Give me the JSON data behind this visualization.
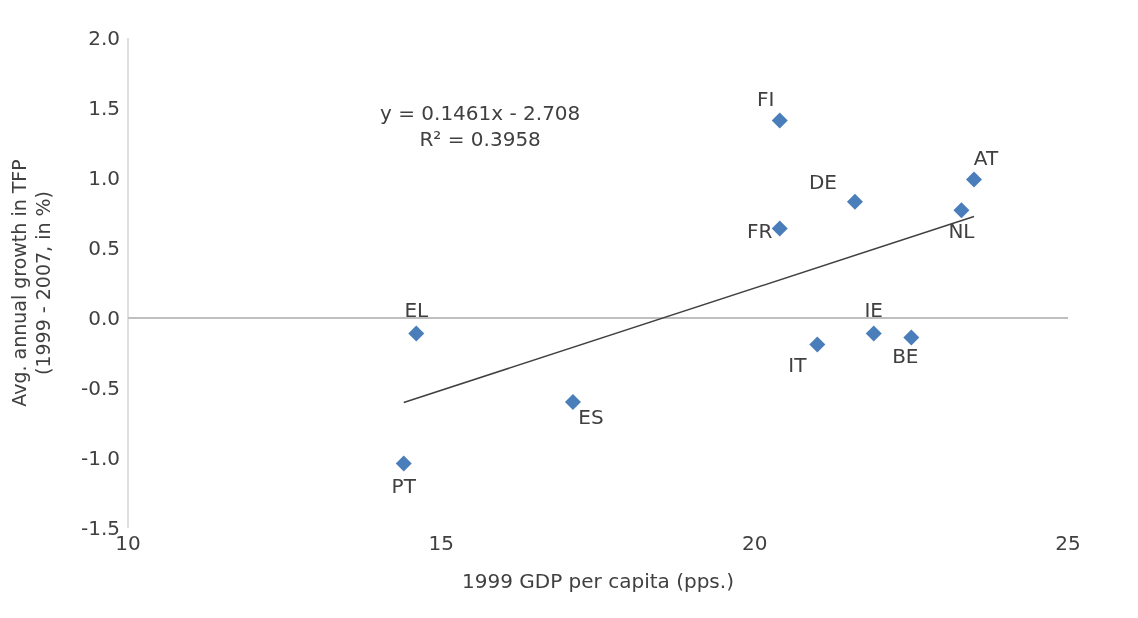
{
  "chart_data": {
    "type": "scatter",
    "xlabel": "1999 GDP per capita (pps.)",
    "ylabel": "Avg. annual growth  in TFP\n(1999 - 2007, in %)",
    "series": [
      {
        "color": "#4a7ebb",
        "marker": "diamond",
        "x": [
          20.4,
          23.5,
          21.6,
          23.3,
          20.4,
          14.6,
          21.9,
          22.5,
          21.0,
          17.1,
          14.4
        ],
        "values": [
          1.41,
          0.99,
          0.83,
          0.77,
          0.64,
          -0.11,
          -0.11,
          -0.14,
          -0.19,
          -0.6,
          -1.04
        ]
      },
      {
        "type": "line",
        "color": "#404040",
        "marker": "none",
        "x": [
          14.4,
          23.5
        ],
        "values": [
          -0.604,
          0.725
        ]
      }
    ],
    "annotations": [
      {
        "text": "FI",
        "x": 20.4,
        "y": 1.41
      },
      {
        "text": "AT",
        "x": 23.5,
        "y": 0.99
      },
      {
        "text": "DE",
        "x": 21.6,
        "y": 0.83
      },
      {
        "text": "NL",
        "x": 23.3,
        "y": 0.77
      },
      {
        "text": "FR",
        "x": 20.4,
        "y": 0.64
      },
      {
        "text": "EL",
        "x": 14.6,
        "y": -0.11
      },
      {
        "text": "IE",
        "x": 21.9,
        "y": -0.11
      },
      {
        "text": "BE",
        "x": 22.5,
        "y": -0.14
      },
      {
        "text": "IT",
        "x": 21.0,
        "y": -0.19
      },
      {
        "text": "ES",
        "x": 17.1,
        "y": -0.6
      },
      {
        "text": "PT",
        "x": 14.4,
        "y": -1.04
      },
      "y = 0.1461x - 2.708\nR² = 0.3958"
    ],
    "xlim": [
      10,
      25
    ],
    "xticks": [
      10,
      15,
      20,
      25
    ],
    "ylim": [
      -1.5,
      2.0
    ],
    "yticks": [
      {
        "value": -1.5,
        "label": "-1.5"
      },
      {
        "value": -1.0,
        "label": "-1.0"
      },
      {
        "value": -0.5,
        "label": "-0.5"
      },
      {
        "value": 0,
        "label": "0.0"
      },
      {
        "value": 0.5,
        "label": "0.5"
      },
      {
        "value": 1.0,
        "label": "1.0"
      },
      {
        "value": 1.5,
        "label": "1.5"
      },
      {
        "value": 2.0,
        "label": "2.0"
      }
    ],
    "ref_lines": [
      {
        "axis": "y",
        "value": 0,
        "color": "#bfbfbf"
      }
    ],
    "grid": false,
    "legend": false
  }
}
